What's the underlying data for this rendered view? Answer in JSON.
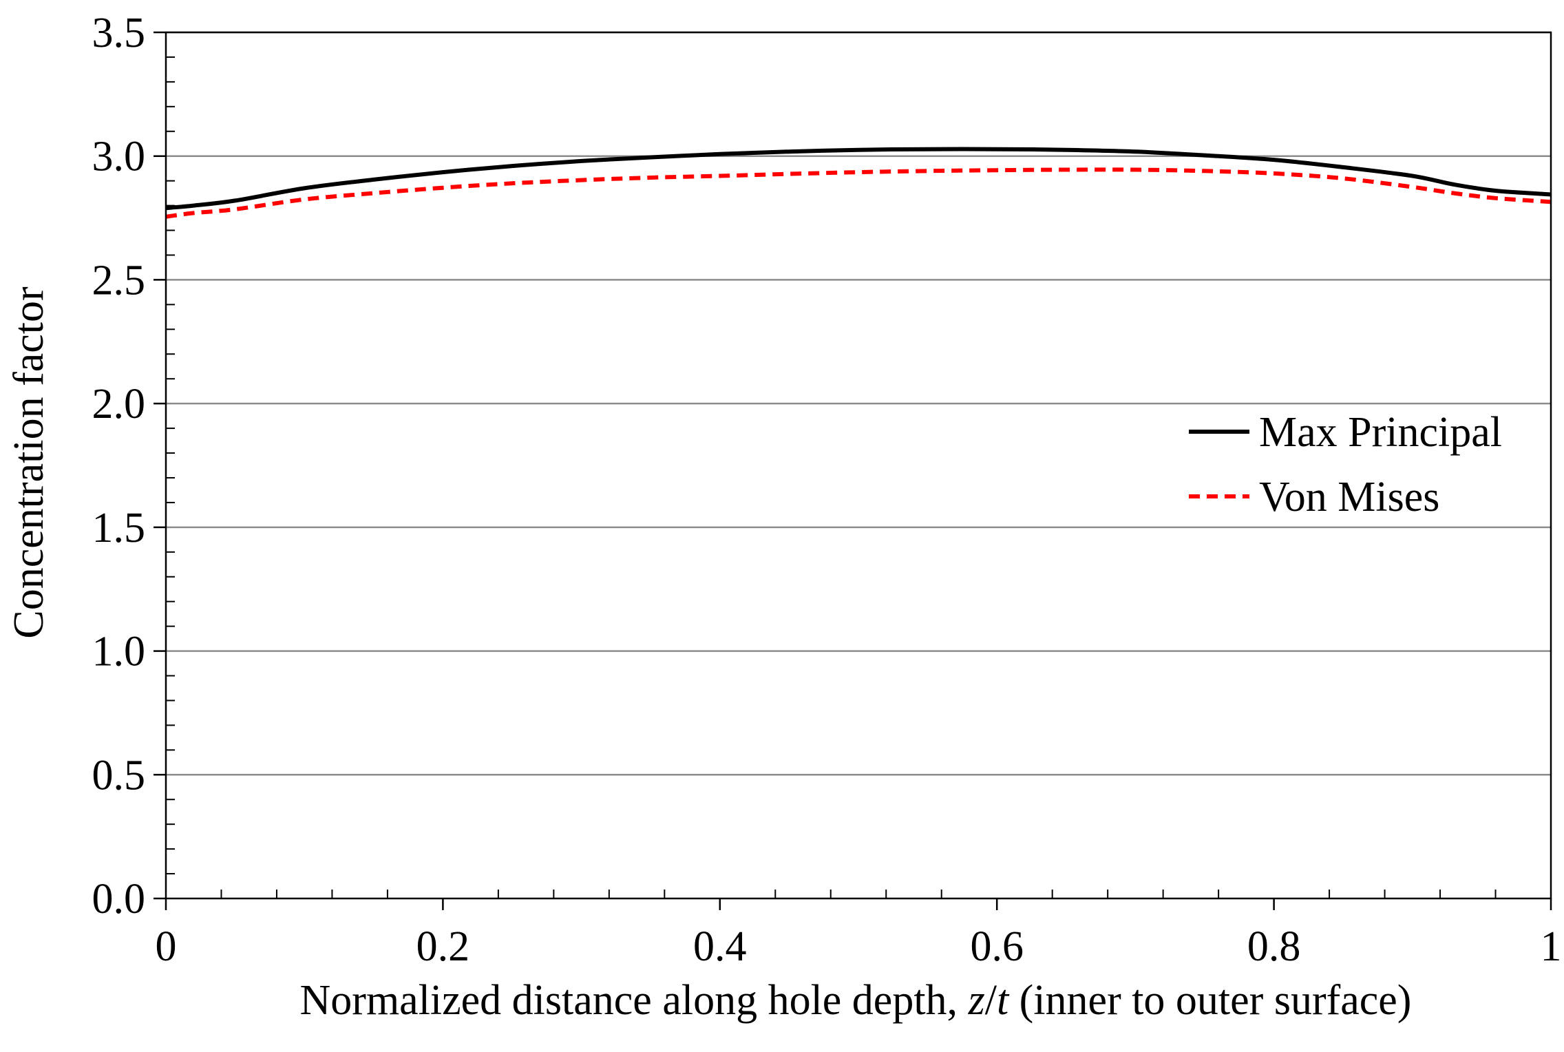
{
  "chart_data": {
    "type": "line",
    "title": "",
    "xlabel": {
      "prefix": "Normalized distance along hole depth, ",
      "var1": "z",
      "slash": "/",
      "var2": "t",
      "suffix": " (inner to outer surface)"
    },
    "ylabel": "Concentration factor",
    "xlim": [
      0,
      1
    ],
    "ylim": [
      0,
      3.5
    ],
    "x_ticks": [
      0,
      0.2,
      0.4,
      0.6,
      0.8,
      1
    ],
    "x_tick_labels": [
      "0",
      "0.2",
      "0.4",
      "0.6",
      "0.8",
      "1"
    ],
    "y_ticks": [
      0,
      0.5,
      1.0,
      1.5,
      2.0,
      2.5,
      3.0,
      3.5
    ],
    "y_tick_labels": [
      "0.0",
      "0.5",
      "1.0",
      "1.5",
      "2.0",
      "2.5",
      "3.0",
      "3.5"
    ],
    "y_minor_step": 0.1,
    "x_minor_step": 0.04,
    "grid": "horizontal",
    "legend_position": "center-right",
    "series": [
      {
        "name": "Max Principal",
        "color": "#000000",
        "style": "solid",
        "x": [
          0,
          0.02,
          0.05,
          0.1,
          0.15,
          0.2,
          0.25,
          0.3,
          0.35,
          0.4,
          0.45,
          0.5,
          0.55,
          0.6,
          0.65,
          0.7,
          0.75,
          0.8,
          0.85,
          0.9,
          0.93,
          0.96,
          1.0
        ],
        "values": [
          2.79,
          2.8,
          2.82,
          2.87,
          2.905,
          2.935,
          2.96,
          2.98,
          2.995,
          3.008,
          3.018,
          3.025,
          3.028,
          3.028,
          3.025,
          3.018,
          3.003,
          2.985,
          2.955,
          2.92,
          2.885,
          2.86,
          2.845
        ]
      },
      {
        "name": "Von Mises",
        "color": "#ff0000",
        "style": "dashed",
        "x": [
          0,
          0.02,
          0.05,
          0.1,
          0.15,
          0.2,
          0.25,
          0.3,
          0.35,
          0.4,
          0.45,
          0.5,
          0.55,
          0.6,
          0.65,
          0.7,
          0.75,
          0.8,
          0.85,
          0.9,
          0.93,
          0.96,
          1.0
        ],
        "values": [
          2.755,
          2.77,
          2.785,
          2.825,
          2.85,
          2.872,
          2.89,
          2.903,
          2.913,
          2.92,
          2.928,
          2.935,
          2.94,
          2.943,
          2.945,
          2.945,
          2.94,
          2.93,
          2.91,
          2.875,
          2.85,
          2.83,
          2.815
        ]
      }
    ]
  }
}
